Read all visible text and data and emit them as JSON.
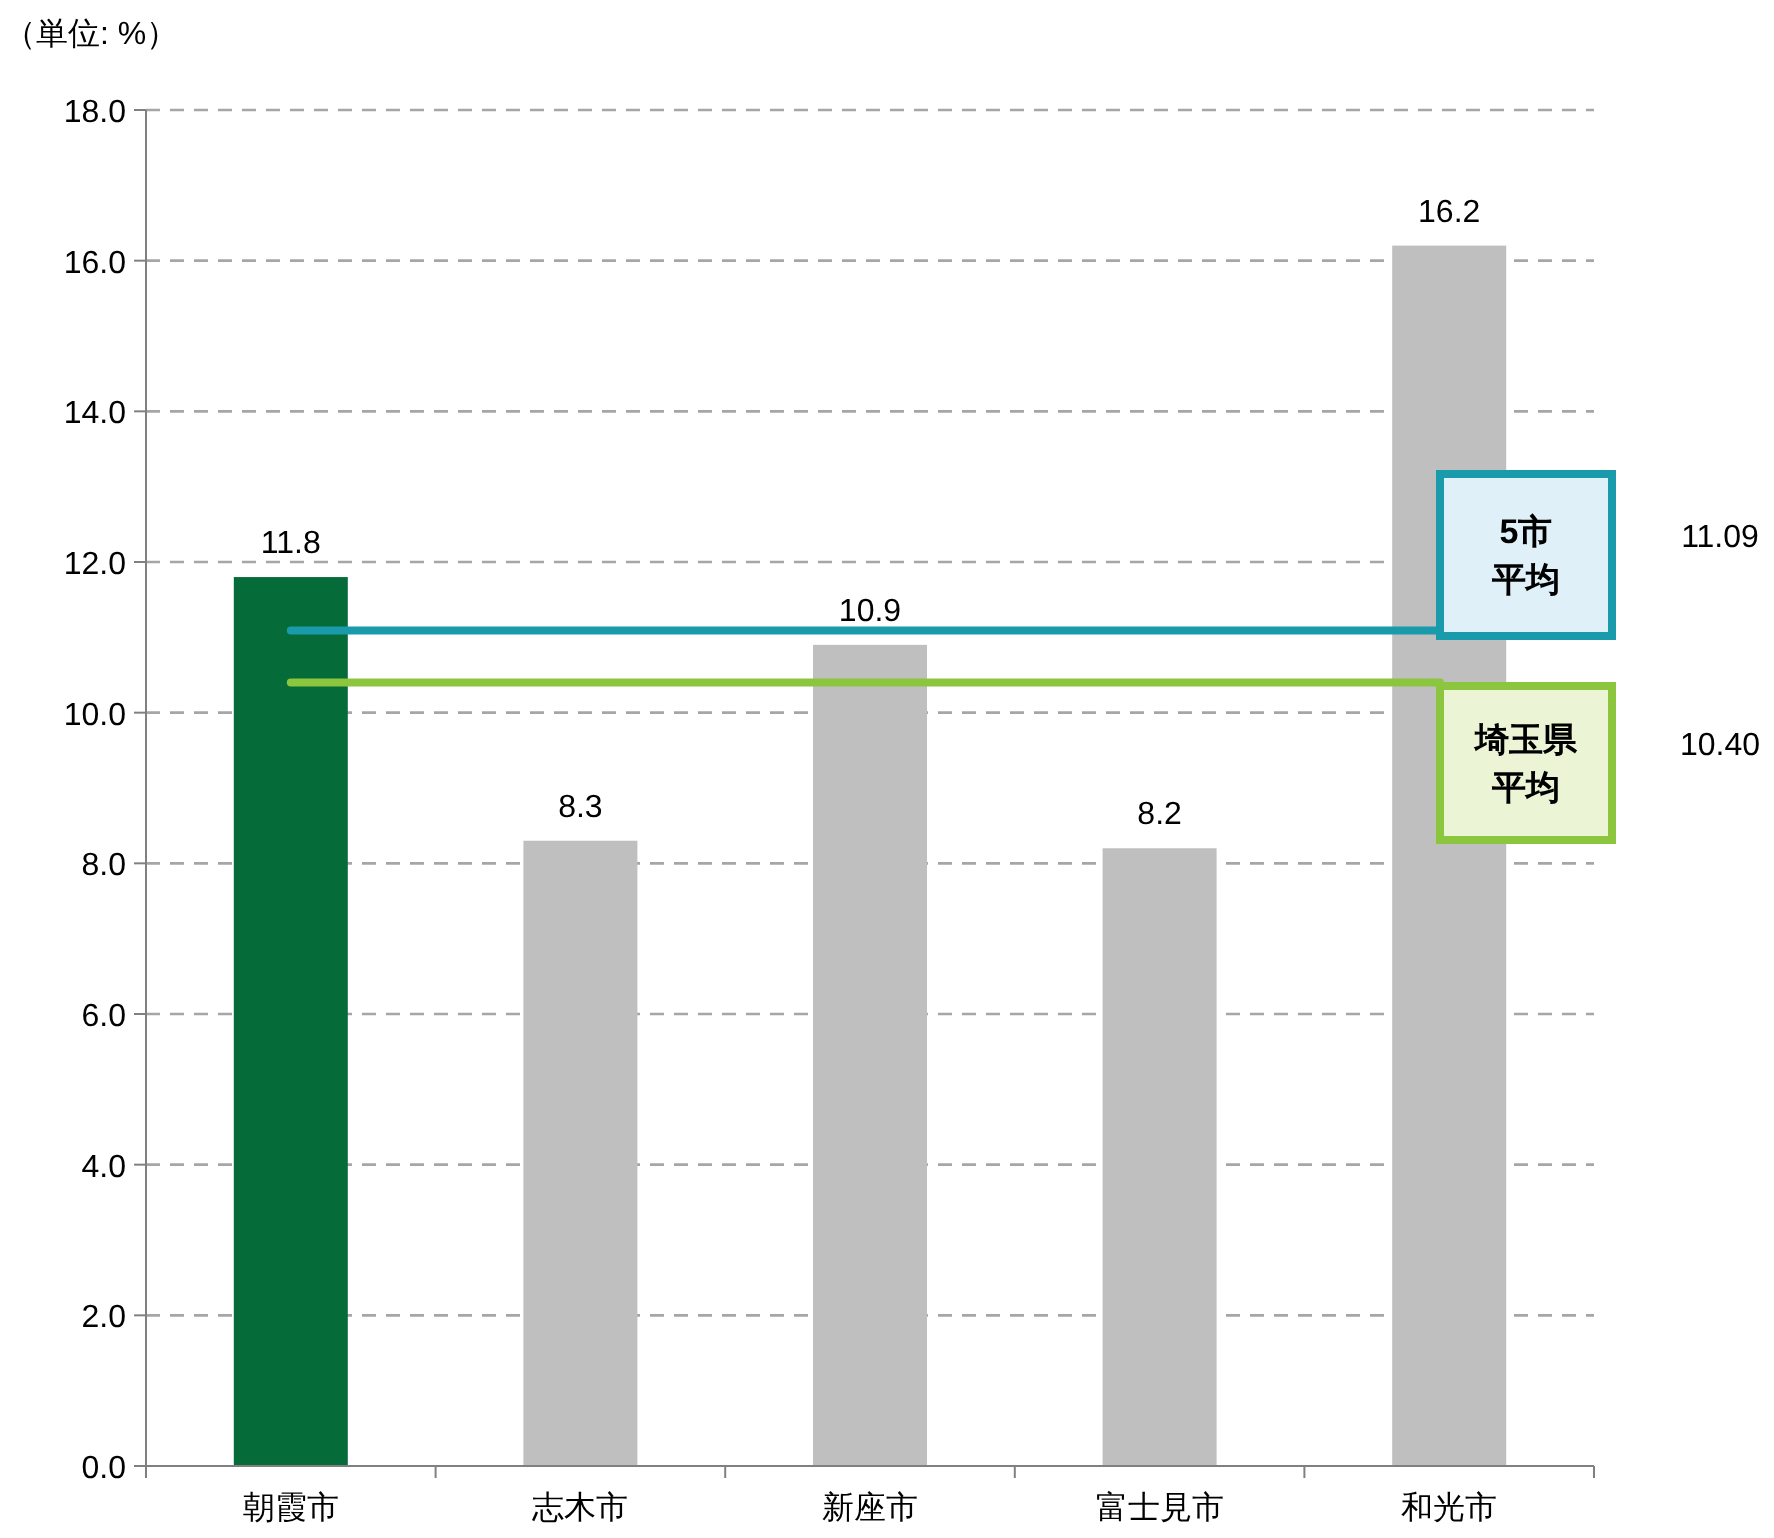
{
  "chart_data": {
    "type": "bar",
    "ylabel": "（単位: %）",
    "categories": [
      "朝霞市",
      "志木市",
      "新座市",
      "富士見市",
      "和光市"
    ],
    "values": [
      11.8,
      8.3,
      10.9,
      8.2,
      16.2
    ],
    "colors": [
      "#056b38",
      "#bfbfbf",
      "#bfbfbf",
      "#bfbfbf",
      "#bfbfbf"
    ],
    "ylim": [
      0,
      18
    ],
    "yticks": [
      {
        "value": 0,
        "label": "0.0"
      },
      {
        "value": 2,
        "label": "2.0"
      },
      {
        "value": 4,
        "label": "4.0"
      },
      {
        "value": 6,
        "label": "6.0"
      },
      {
        "value": 8,
        "label": "8.0"
      },
      {
        "value": 10,
        "label": "10.0"
      },
      {
        "value": 12,
        "label": "12.0"
      },
      {
        "value": 14,
        "label": "14.0"
      },
      {
        "value": 16,
        "label": "16.0"
      },
      {
        "value": 18,
        "label": "18.0"
      }
    ],
    "grid": "y",
    "data_labels": true,
    "ref_lines": [
      {
        "axis": "y",
        "value": 11.09,
        "label": "5市平均",
        "color": "#1a9bab"
      },
      {
        "axis": "y",
        "value": 10.4,
        "label": "埼玉県平均",
        "color": "#8cc63f"
      }
    ],
    "annotations": [
      "11.09",
      "10.40"
    ]
  }
}
